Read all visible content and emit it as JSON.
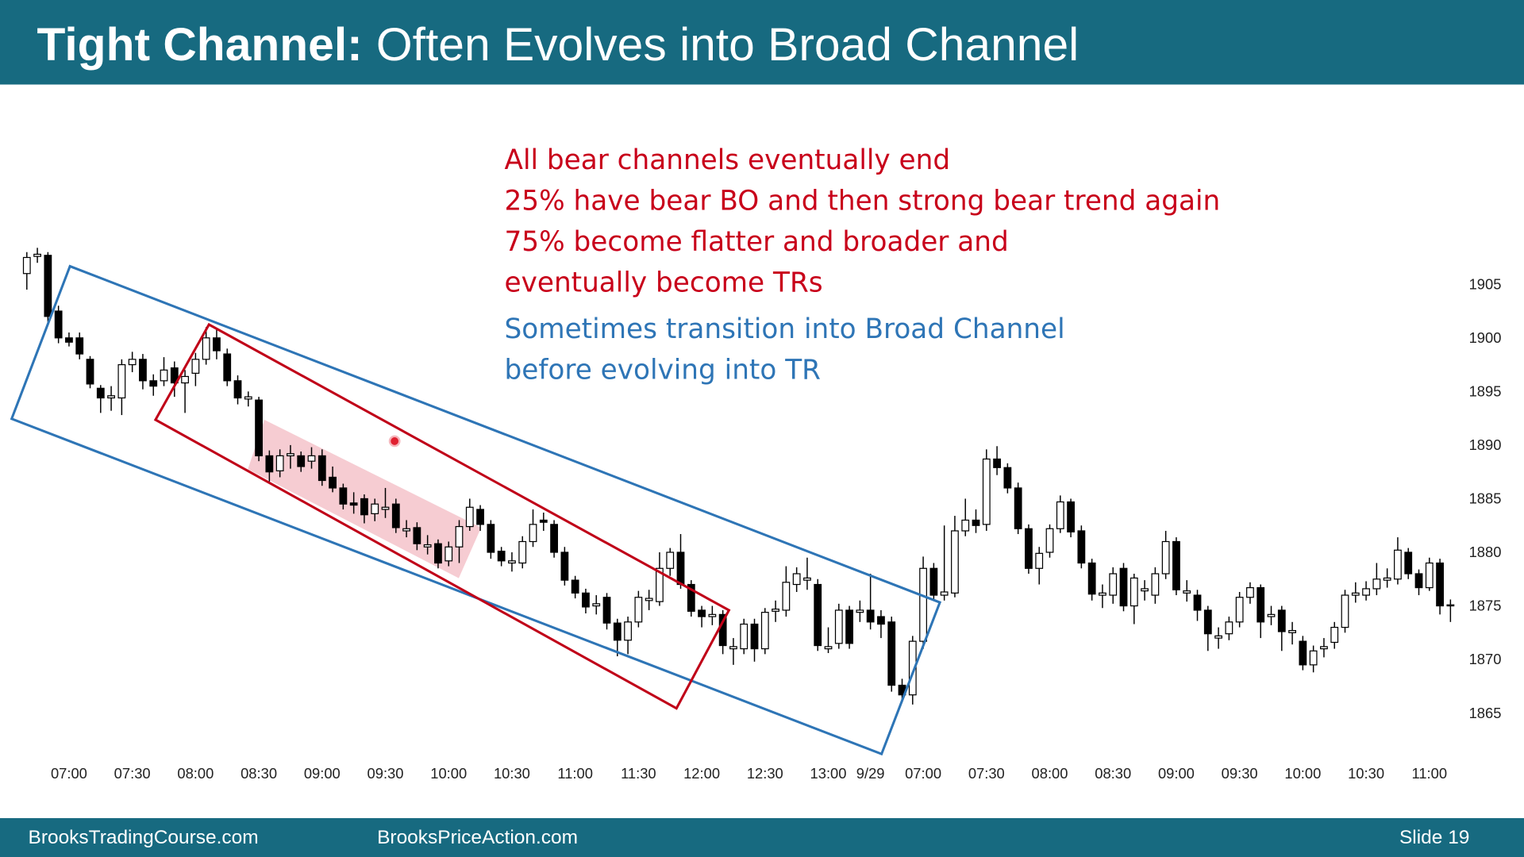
{
  "header": {
    "title_bold": "Tight Channel:",
    "title_rest": "Often Evolves into Broad Channel"
  },
  "chart_data": {
    "type": "candlestick",
    "up_color": "#ffffff",
    "down_color": "#000000",
    "categories": [
      null,
      null,
      null,
      null,
      "07:00",
      null,
      null,
      null,
      null,
      null,
      "07:30",
      null,
      null,
      null,
      null,
      null,
      "08:00",
      null,
      null,
      null,
      null,
      null,
      "08:30",
      null,
      null,
      null,
      null,
      null,
      "09:00",
      null,
      null,
      null,
      null,
      null,
      "09:30",
      null,
      null,
      null,
      null,
      null,
      "10:00",
      null,
      null,
      null,
      null,
      null,
      "10:30",
      null,
      null,
      null,
      null,
      null,
      "11:00",
      null,
      null,
      null,
      null,
      null,
      "11:30",
      null,
      null,
      null,
      null,
      null,
      "12:00",
      null,
      null,
      null,
      null,
      null,
      "12:30",
      null,
      null,
      null,
      null,
      null,
      "13:00",
      null,
      null,
      null,
      "9/29",
      null,
      null,
      null,
      null,
      "07:00",
      null,
      null,
      null,
      null,
      null,
      "07:30",
      null,
      null,
      null,
      null,
      null,
      "08:00",
      null,
      null,
      null,
      null,
      null,
      "08:30",
      null,
      null,
      null,
      null,
      null,
      "09:00",
      null,
      null,
      null,
      null,
      null,
      "09:30",
      null,
      null,
      null,
      null,
      null,
      "10:00",
      null,
      null,
      null,
      null,
      null,
      "10:30",
      null,
      null,
      null,
      null,
      null,
      "11:00",
      null,
      null
    ],
    "open": [
      1906,
      1907.6,
      1907.7,
      1902.5,
      1900,
      1900,
      1898,
      1895.3,
      1894.4,
      1894.4,
      1897.5,
      1898,
      1896,
      1896,
      1897.2,
      1895.8,
      1896.7,
      1898,
      1900,
      1898.5,
      1896,
      1894.3,
      1894.2,
      1889,
      1887.6,
      1889,
      1889,
      1888.5,
      1889,
      1887,
      1886,
      1884.6,
      1885,
      1883.6,
      1884,
      1884.5,
      1882,
      1882.3,
      1880.5,
      1880.8,
      1879.2,
      1880.5,
      1882.4,
      1884,
      1882.6,
      1880.1,
      1879,
      1879,
      1881,
      1883,
      1882.6,
      1880,
      1877.4,
      1876.2,
      1875,
      1875.8,
      1873.4,
      1871.8,
      1873.5,
      1875.5,
      1875.4,
      1878.5,
      1880,
      1877,
      1874.6,
      1874,
      1874.2,
      1871,
      1871,
      1873.3,
      1871,
      1874.5,
      1874.6,
      1877,
      1877.4,
      1877,
      1871,
      1871.5,
      1874.6,
      1874.4,
      1874.6,
      1874,
      1873.5,
      1867.6,
      1866.7,
      1871.7,
      1878.5,
      1876,
      1876.2,
      1882,
      1883,
      1882.6,
      1888.7,
      1887.9,
      1886,
      1882.2,
      1878.5,
      1880,
      1882.2,
      1884.7,
      1882,
      1879,
      1876,
      1876,
      1878.5,
      1875,
      1876.4,
      1876,
      1878,
      1881,
      1876.2,
      1876,
      1874.6,
      1872,
      1872.4,
      1873.5,
      1875.8,
      1876.7,
      1874,
      1874.6,
      1872.5,
      1871.7,
      1869.5,
      1871,
      1871.6,
      1873,
      1876,
      1876,
      1876.6,
      1877.4,
      1877.5,
      1880,
      1878,
      1876.7,
      1879,
      1875
    ],
    "high": [
      1908,
      1908.4,
      1908,
      1903,
      1900.5,
      1900.5,
      1898.3,
      1895.6,
      1895.5,
      1898,
      1898.7,
      1898.5,
      1896.6,
      1898.2,
      1897.8,
      1897,
      1898.6,
      1901,
      1900.8,
      1899,
      1896.5,
      1895,
      1894.5,
      1889.5,
      1889.6,
      1890,
      1889.4,
      1889.8,
      1889.6,
      1888,
      1886.4,
      1885.6,
      1885.4,
      1885,
      1886,
      1885,
      1883,
      1882.8,
      1881.6,
      1881.2,
      1881,
      1883,
      1885,
      1884.4,
      1883,
      1880.5,
      1880,
      1881.5,
      1884,
      1883.7,
      1883,
      1880.5,
      1877.8,
      1876.6,
      1876,
      1876.2,
      1873.8,
      1874,
      1876.4,
      1876.5,
      1880,
      1880.4,
      1881.7,
      1877.4,
      1875,
      1875,
      1874.6,
      1872,
      1873.8,
      1873.8,
      1874.8,
      1875.5,
      1878.7,
      1878.6,
      1879.5,
      1877.5,
      1873,
      1875.2,
      1875,
      1875.5,
      1878,
      1874.6,
      1874,
      1868.2,
      1872.2,
      1879.6,
      1879,
      1882.5,
      1883.4,
      1885,
      1884,
      1889.6,
      1889.9,
      1888.3,
      1886.5,
      1882.6,
      1880.5,
      1882.6,
      1885.3,
      1885,
      1882.5,
      1879.4,
      1877,
      1878.6,
      1879,
      1878,
      1877.4,
      1878.6,
      1882,
      1881.4,
      1877.4,
      1876.5,
      1875,
      1873,
      1874,
      1876.3,
      1877.2,
      1877,
      1875,
      1875,
      1873.5,
      1872.2,
      1871.3,
      1872,
      1873.5,
      1876.5,
      1877.2,
      1877.3,
      1879,
      1878.5,
      1881.4,
      1880.4,
      1878.4,
      1879.5,
      1879.4,
      1875.6
    ],
    "low": [
      1904.5,
      1907,
      1901.5,
      1899.5,
      1899.2,
      1898,
      1895.3,
      1893,
      1893.2,
      1892.8,
      1896.8,
      1895.2,
      1894.6,
      1895.5,
      1894.5,
      1893,
      1895.5,
      1897.5,
      1898,
      1895.5,
      1893.8,
      1893.6,
      1888.5,
      1886.6,
      1887,
      1887.8,
      1887.5,
      1887.8,
      1886.2,
      1885.6,
      1884,
      1883.6,
      1882.7,
      1882.9,
      1883.2,
      1881.8,
      1881.4,
      1880.2,
      1879.8,
      1878.5,
      1878.7,
      1879,
      1882,
      1882,
      1879.4,
      1878.7,
      1878.2,
      1878.5,
      1880.5,
      1882,
      1879.5,
      1876.9,
      1875.7,
      1874.3,
      1874.2,
      1872.8,
      1870.3,
      1870.5,
      1873,
      1874.6,
      1875,
      1877.8,
      1876.6,
      1874,
      1873,
      1873.2,
      1870.5,
      1869.5,
      1870.5,
      1869.8,
      1870.5,
      1873.5,
      1874,
      1876.3,
      1876.5,
      1870.8,
      1870.6,
      1871,
      1871,
      1873.5,
      1872.8,
      1872,
      1867,
      1866,
      1865.8,
      1871,
      1875.5,
      1875.5,
      1875.8,
      1881.5,
      1881.8,
      1882,
      1887.2,
      1885.5,
      1881.7,
      1878,
      1877,
      1879.5,
      1881.8,
      1881.4,
      1878.5,
      1875.5,
      1874.8,
      1875.2,
      1874.5,
      1873.3,
      1875.5,
      1875.2,
      1877.5,
      1876,
      1875.4,
      1873.6,
      1870.8,
      1871,
      1871.8,
      1873,
      1875.2,
      1872,
      1873.2,
      1870.8,
      1871.4,
      1869,
      1868.8,
      1870.2,
      1871,
      1872.5,
      1875.3,
      1875.5,
      1876,
      1876.7,
      1877,
      1877.5,
      1876,
      1876.4,
      1874.2,
      1873.5
    ],
    "close": [
      1907.5,
      1907.8,
      1902,
      1900,
      1899.6,
      1898.5,
      1895.7,
      1894.4,
      1894.6,
      1897.5,
      1898,
      1896,
      1895.5,
      1897,
      1895.8,
      1896.4,
      1898,
      1900,
      1898.8,
      1896,
      1894.4,
      1894.5,
      1889,
      1887.5,
      1889,
      1889.2,
      1888,
      1889,
      1886.7,
      1886,
      1884.5,
      1884.4,
      1883.5,
      1884.5,
      1884.2,
      1882.3,
      1882.2,
      1880.8,
      1880.7,
      1879,
      1880.5,
      1882.4,
      1884.2,
      1882.6,
      1880,
      1879.2,
      1879.2,
      1881,
      1882.6,
      1882.8,
      1880,
      1877.4,
      1876.2,
      1874.9,
      1875.2,
      1873.4,
      1871.8,
      1873.5,
      1875.8,
      1875.7,
      1878.5,
      1880,
      1877,
      1874.5,
      1874,
      1874.2,
      1871.3,
      1871.2,
      1873.3,
      1871,
      1874.4,
      1874.7,
      1877.2,
      1878,
      1877.6,
      1871.3,
      1871.2,
      1874.6,
      1871.5,
      1874.6,
      1873.5,
      1873.3,
      1867.6,
      1866.7,
      1871.7,
      1878.5,
      1876,
      1876.3,
      1882,
      1883,
      1882.5,
      1888.7,
      1887.9,
      1886,
      1882.2,
      1878.5,
      1879.9,
      1882.2,
      1884.7,
      1881.9,
      1879,
      1876.1,
      1876.2,
      1878,
      1875,
      1877.6,
      1876.6,
      1878,
      1881,
      1876.5,
      1876.4,
      1874.6,
      1872.4,
      1872.2,
      1873.5,
      1875.8,
      1876.7,
      1873.5,
      1874.2,
      1872.6,
      1872.7,
      1869.5,
      1870.8,
      1871.2,
      1873,
      1876,
      1876.2,
      1876.6,
      1877.5,
      1877.6,
      1880.2,
      1878,
      1876.7,
      1879,
      1875,
      1875.1
    ],
    "ylim": [
      1862,
      1922
    ],
    "yticks": [
      1865,
      1870,
      1875,
      1880,
      1885,
      1890,
      1895,
      1900,
      1905
    ],
    "grid": false,
    "annotations_red": [
      "All bear channels eventually end",
      "25% have bear BO and then strong bear trend again",
      "75% become flatter and broader and",
      "eventually become TRs"
    ],
    "annotations_blue": [
      "Sometimes transition into Broad Channel",
      "before evolving into TR"
    ]
  },
  "footer": {
    "left": "BrooksTradingCourse.com",
    "middle": "BrooksPriceAction.com",
    "right": "Slide 19"
  }
}
